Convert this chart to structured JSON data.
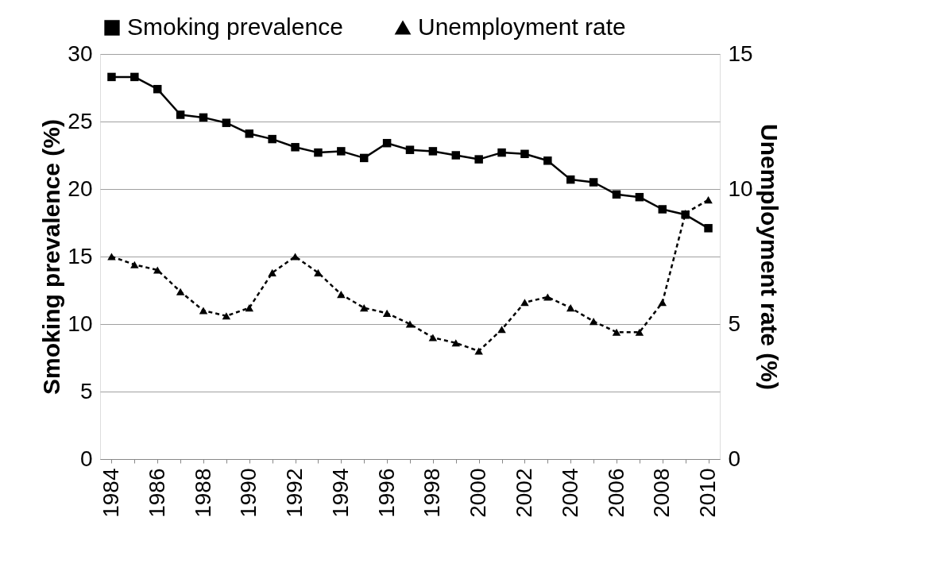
{
  "chart_data": {
    "type": "line",
    "categories": [
      "1984",
      null,
      "1986",
      null,
      "1988",
      null,
      "1990",
      null,
      "1992",
      null,
      "1994",
      null,
      "1996",
      null,
      "1998",
      null,
      "2000",
      null,
      "2002",
      null,
      "2004",
      null,
      "2006",
      null,
      "2008",
      null,
      "2010"
    ],
    "ylabel": "Smoking prevalence (%)",
    "y2label": "Unemployment rate (%)",
    "ylim": [
      0,
      30
    ],
    "yticks": [
      0,
      5,
      10,
      15,
      20,
      25,
      30
    ],
    "y2lim": [
      0,
      15
    ],
    "y2ticks": [
      0,
      5,
      10,
      15
    ],
    "grid": "y",
    "legend": "top",
    "series": [
      {
        "name": "Smoking prevalence",
        "color": "#000000",
        "marker": "square",
        "line_style": "solid",
        "values": [
          28.3,
          28.3,
          27.4,
          25.5,
          25.3,
          24.9,
          24.1,
          23.7,
          23.1,
          22.7,
          22.8,
          22.3,
          23.4,
          22.9,
          22.8,
          22.5,
          22.2,
          22.7,
          22.6,
          22.1,
          20.7,
          20.5,
          19.6,
          19.4,
          18.5,
          18.1,
          17.1
        ]
      },
      {
        "name": "Unemployment rate",
        "color": "#000000",
        "marker": "triangle",
        "line_style": "dashed",
        "axis": "y2",
        "values": [
          7.5,
          7.2,
          7.0,
          6.2,
          5.5,
          5.3,
          5.6,
          6.9,
          7.5,
          6.9,
          6.1,
          5.6,
          5.4,
          5.0,
          4.5,
          4.3,
          4.0,
          4.8,
          5.8,
          6.0,
          5.6,
          5.1,
          4.7,
          4.7,
          5.8,
          9.1,
          9.6
        ]
      }
    ]
  }
}
